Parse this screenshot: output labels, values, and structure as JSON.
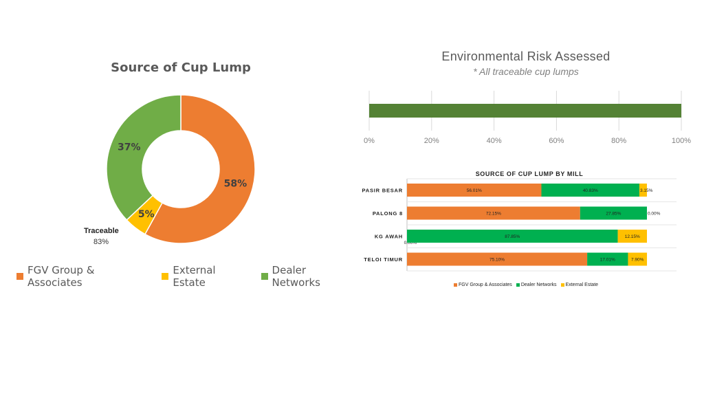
{
  "colors": {
    "fgv": "#ED7D31",
    "external": "#FFC000",
    "dealer": "#70AD47",
    "dealer_mill": "#00B050",
    "env_bar": "#548235"
  },
  "donut": {
    "title": "Source of Cup Lump",
    "traceable_label": "Traceable",
    "traceable_value": "83%",
    "legend": [
      "FGV Group & Associates",
      "External Estate",
      "Dealer Networks"
    ]
  },
  "environmental": {
    "title": "Environmental Risk Assessed",
    "subtitle": "* All traceable cup lumps"
  },
  "mill": {
    "title": "SOURCE OF CUP LUMP BY MILL",
    "legend": [
      "FGV Group & Associates",
      "Dealer Networks",
      "External Estate"
    ]
  },
  "chart_data": [
    {
      "type": "pie",
      "title": "Source of Cup Lump",
      "categories": [
        "FGV Group & Associates",
        "External Estate",
        "Dealer Networks"
      ],
      "values": [
        58,
        5,
        37
      ],
      "labels": [
        "58%",
        "5%",
        "37%"
      ],
      "annotation": "Traceable 83%",
      "legend_position": "bottom"
    },
    {
      "type": "bar",
      "title": "Environmental Risk Assessed",
      "subtitle": "* All traceable cup lumps",
      "orientation": "horizontal",
      "values": [
        100
      ],
      "xlim": [
        0,
        100
      ],
      "xticks": [
        "0%",
        "20%",
        "40%",
        "60%",
        "80%",
        "100%"
      ],
      "grid": true
    },
    {
      "type": "bar",
      "title": "SOURCE OF CUP LUMP BY MILL",
      "orientation": "horizontal",
      "stacked": true,
      "categories": [
        "PASIR BESAR",
        "PALONG 8",
        "KG AWAH",
        "TELOI TIMUR"
      ],
      "series": [
        {
          "name": "FGV Group & Associates",
          "values": [
            56.01,
            72.15,
            0.0,
            75.1
          ],
          "labels": [
            "56.01%",
            "72.15%",
            "0.00%",
            "75.10%"
          ]
        },
        {
          "name": "Dealer Networks",
          "values": [
            40.83,
            27.85,
            87.85,
            17.01
          ],
          "labels": [
            "40.83%",
            "27.85%",
            "87.85%",
            "17.01%"
          ]
        },
        {
          "name": "External Estate",
          "values": [
            3.15,
            0.0,
            12.15,
            7.9
          ],
          "labels": [
            "3.15%",
            "0.00%",
            "12.15%",
            "7.90%"
          ]
        }
      ],
      "legend_position": "bottom"
    }
  ]
}
